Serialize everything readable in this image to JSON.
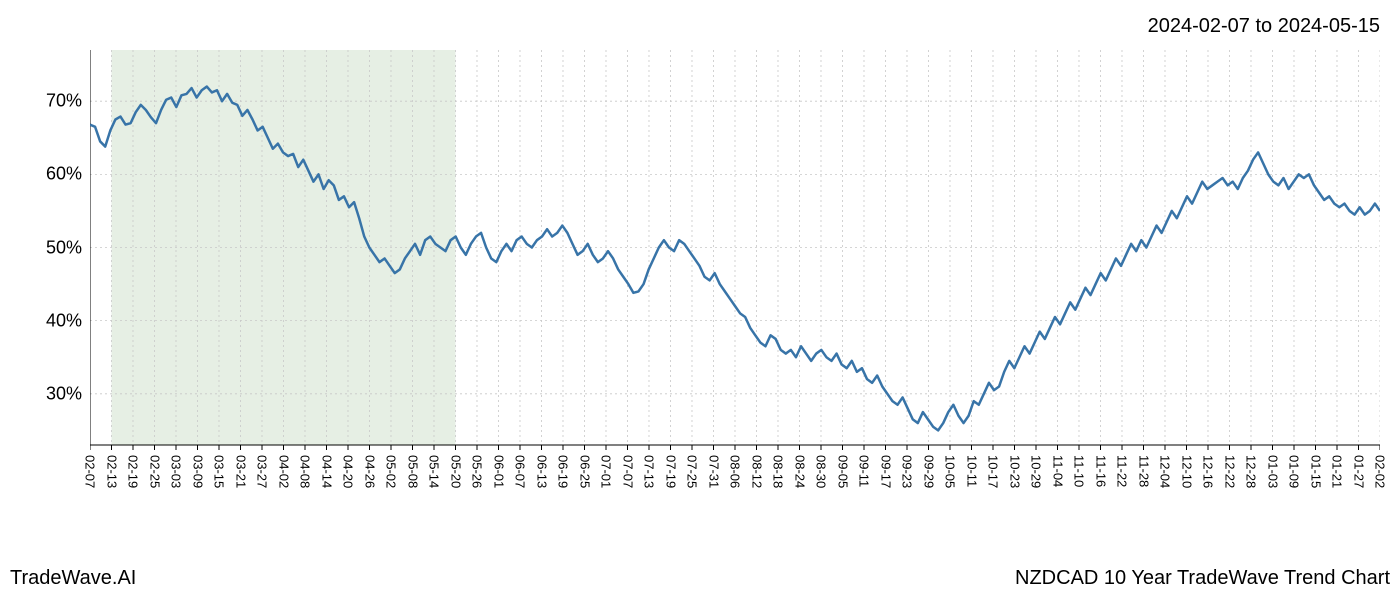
{
  "date_range": "2024-02-07 to 2024-05-15",
  "footer_left": "TradeWave.AI",
  "footer_right": "NZDCAD 10 Year TradeWave Trend Chart",
  "chart": {
    "type": "line",
    "background_color": "#ffffff",
    "line_color": "#3874a8",
    "line_width": 2.5,
    "grid_color": "#c8c8c8",
    "grid_dash": "2,3",
    "highlight_fill": "#d5e5d2",
    "highlight_opacity": 0.6,
    "highlight_x_range": [
      1,
      17
    ],
    "axis_color": "#000000",
    "tick_color": "#000000",
    "ylim": [
      23,
      77
    ],
    "yticks": [
      30,
      40,
      50,
      60,
      70
    ],
    "ytick_labels": [
      "30%",
      "40%",
      "50%",
      "60%",
      "70%"
    ],
    "y_fontsize": 18,
    "xtick_labels": [
      "02-07",
      "02-13",
      "02-19",
      "02-25",
      "03-03",
      "03-09",
      "03-15",
      "03-21",
      "03-27",
      "04-02",
      "04-08",
      "04-14",
      "04-20",
      "04-26",
      "05-02",
      "05-08",
      "05-14",
      "05-20",
      "05-26",
      "06-01",
      "06-07",
      "06-13",
      "06-19",
      "06-25",
      "07-01",
      "07-07",
      "07-13",
      "07-19",
      "07-25",
      "07-31",
      "08-06",
      "08-12",
      "08-18",
      "08-24",
      "08-30",
      "09-05",
      "09-11",
      "09-17",
      "09-23",
      "09-29",
      "10-05",
      "10-11",
      "10-17",
      "10-23",
      "10-29",
      "11-04",
      "11-10",
      "11-16",
      "11-22",
      "11-28",
      "12-04",
      "12-10",
      "12-16",
      "12-22",
      "12-28",
      "01-03",
      "01-09",
      "01-15",
      "01-21",
      "01-27",
      "02-02"
    ],
    "xtick_rotation": 90,
    "x_fontsize": 13,
    "values": [
      66.8,
      66.5,
      64.5,
      63.8,
      66.0,
      67.5,
      67.9,
      66.8,
      67.0,
      68.5,
      69.5,
      68.8,
      67.8,
      67.0,
      68.8,
      70.2,
      70.5,
      69.2,
      70.8,
      71.0,
      71.8,
      70.5,
      71.5,
      72.0,
      71.2,
      71.5,
      70.0,
      71.0,
      69.8,
      69.5,
      68.0,
      68.8,
      67.5,
      66.0,
      66.5,
      65.0,
      63.5,
      64.2,
      63.0,
      62.5,
      62.8,
      61.0,
      62.0,
      60.5,
      59.0,
      60.0,
      58.0,
      59.2,
      58.5,
      56.5,
      57.0,
      55.5,
      56.2,
      54.0,
      51.5,
      50.0,
      49.0,
      48.0,
      48.5,
      47.5,
      46.5,
      47.0,
      48.5,
      49.5,
      50.5,
      49.0,
      51.0,
      51.5,
      50.5,
      50.0,
      49.5,
      51.0,
      51.5,
      50.0,
      49.0,
      50.5,
      51.5,
      52.0,
      50.0,
      48.5,
      48.0,
      49.5,
      50.5,
      49.5,
      51.0,
      51.5,
      50.5,
      50.0,
      51.0,
      51.5,
      52.5,
      51.5,
      52.0,
      53.0,
      52.0,
      50.5,
      49.0,
      49.5,
      50.5,
      49.0,
      48.0,
      48.5,
      49.5,
      48.5,
      47.0,
      46.0,
      45.0,
      43.8,
      44.0,
      45.0,
      47.0,
      48.5,
      50.0,
      51.0,
      50.0,
      49.5,
      51.0,
      50.5,
      49.5,
      48.5,
      47.5,
      46.0,
      45.5,
      46.5,
      45.0,
      44.0,
      43.0,
      42.0,
      41.0,
      40.5,
      39.0,
      38.0,
      37.0,
      36.5,
      38.0,
      37.5,
      36.0,
      35.5,
      36.0,
      35.0,
      36.5,
      35.5,
      34.5,
      35.5,
      36.0,
      35.0,
      34.5,
      35.5,
      34.0,
      33.5,
      34.5,
      33.0,
      33.5,
      32.0,
      31.5,
      32.5,
      31.0,
      30.0,
      29.0,
      28.5,
      29.5,
      28.0,
      26.5,
      26.0,
      27.5,
      26.5,
      25.5,
      25.0,
      26.0,
      27.5,
      28.5,
      27.0,
      26.0,
      27.0,
      29.0,
      28.5,
      30.0,
      31.5,
      30.5,
      31.0,
      33.0,
      34.5,
      33.5,
      35.0,
      36.5,
      35.5,
      37.0,
      38.5,
      37.5,
      39.0,
      40.5,
      39.5,
      41.0,
      42.5,
      41.5,
      43.0,
      44.5,
      43.5,
      45.0,
      46.5,
      45.5,
      47.0,
      48.5,
      47.5,
      49.0,
      50.5,
      49.5,
      51.0,
      50.0,
      51.5,
      53.0,
      52.0,
      53.5,
      55.0,
      54.0,
      55.5,
      57.0,
      56.0,
      57.5,
      59.0,
      58.0,
      58.5,
      59.0,
      59.5,
      58.5,
      59.0,
      58.0,
      59.5,
      60.5,
      62.0,
      63.0,
      61.5,
      60.0,
      59.0,
      58.5,
      59.5,
      58.0,
      59.0,
      60.0,
      59.5,
      60.0,
      58.5,
      57.5,
      56.5,
      57.0,
      56.0,
      55.5,
      56.0,
      55.0,
      54.5,
      55.5,
      54.5,
      55.0,
      56.0,
      55.0
    ]
  }
}
